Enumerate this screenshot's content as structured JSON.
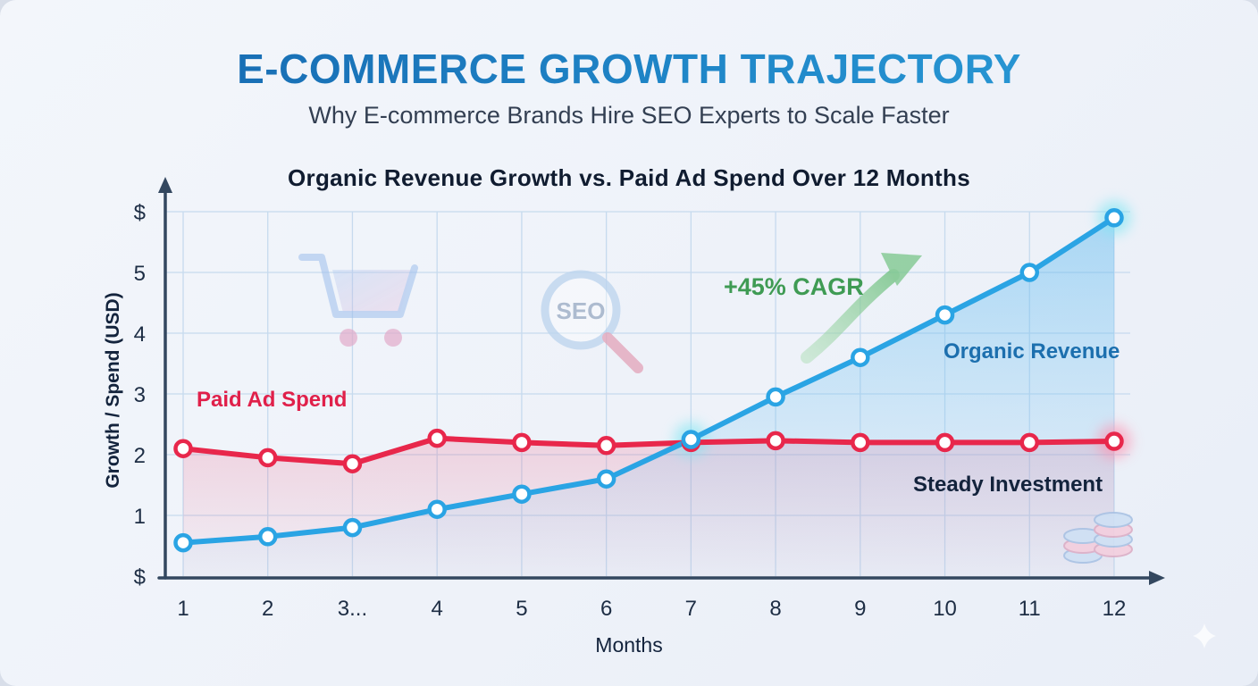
{
  "header": {
    "title": "E-COMMERCE GROWTH TRAJECTORY",
    "subtitle": "Why E-commerce Brands Hire SEO Experts to Scale Faster"
  },
  "chart": {
    "title": "Organic Revenue Growth vs. Paid Ad Spend Over 12 Months",
    "xlabel": "Months",
    "ylabel": "Growth / Spend (USD)",
    "labels": {
      "paid": "Paid Ad Spend",
      "organic": "Organic Revenue",
      "steady": "Steady Investment",
      "cagr": "+45% CAGR"
    },
    "colors": {
      "organic": "#2aa4e4",
      "paid": "#e8274b",
      "cagr": "#3f9b54",
      "axis": "#33475f",
      "grid": "#c6daee"
    }
  },
  "icons": {
    "seo_text": "SEO"
  },
  "chart_data": {
    "type": "line",
    "title": "Organic Revenue Growth vs. Paid Ad Spend Over 12 Months",
    "xlabel": "Months",
    "ylabel": "Growth / Spend (USD)",
    "x": [
      1,
      2,
      3,
      4,
      5,
      6,
      7,
      8,
      9,
      10,
      11,
      12
    ],
    "x_tick_labels": [
      "1",
      "2",
      "3...",
      "4",
      "5",
      "6",
      "7",
      "8",
      "9",
      "10",
      "11",
      "12"
    ],
    "y_ticks": [
      {
        "value": 6,
        "label": "$"
      },
      {
        "value": 5,
        "label": "5"
      },
      {
        "value": 4,
        "label": "4"
      },
      {
        "value": 3,
        "label": "3"
      },
      {
        "value": 2,
        "label": "2"
      },
      {
        "value": 1,
        "label": "1"
      },
      {
        "value": 0,
        "label": "$"
      }
    ],
    "ylim": [
      0,
      6
    ],
    "grid": true,
    "legend_position": "inline-annotations",
    "series": [
      {
        "name": "Organic Revenue",
        "color": "#2aa4e4",
        "values": [
          0.55,
          0.65,
          0.8,
          1.1,
          1.35,
          1.6,
          2.25,
          2.95,
          3.6,
          4.3,
          5.0,
          5.9
        ]
      },
      {
        "name": "Paid Ad Spend",
        "color": "#e8274b",
        "values": [
          2.1,
          1.95,
          1.85,
          2.27,
          2.2,
          2.15,
          2.2,
          2.23,
          2.2,
          2.2,
          2.2,
          2.22
        ]
      }
    ],
    "glow_points": [
      {
        "series": 0,
        "month": 7,
        "color": "#7ee6f2"
      },
      {
        "series": 0,
        "month": 12,
        "color": "#7ee6f2"
      },
      {
        "series": 1,
        "month": 12,
        "color": "#ff8fae"
      }
    ],
    "annotations": [
      {
        "text": "Paid Ad Spend",
        "color": "#e0204a"
      },
      {
        "text": "Organic Revenue",
        "color": "#1c6fae"
      },
      {
        "text": "Steady Investment",
        "color": "#13233c"
      },
      {
        "text": "+45% CAGR",
        "color": "#3f9b54"
      }
    ]
  }
}
